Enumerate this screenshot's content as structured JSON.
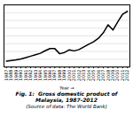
{
  "chart_data": {
    "type": "line",
    "title": "Fig. 1:  Gross domestic product of Malaysia, 1987-2012",
    "subtitle": "(Source of data: The World Bank)",
    "xlabel": "Year",
    "x": [
      1987,
      1988,
      1989,
      1990,
      1991,
      1992,
      1993,
      1994,
      1995,
      1996,
      1997,
      1998,
      1999,
      2000,
      2001,
      2002,
      2003,
      2004,
      2005,
      2006,
      2007,
      2008,
      2009,
      2010,
      2011,
      2012
    ],
    "values": [
      31.1,
      35.1,
      38.5,
      44.0,
      50.9,
      59.0,
      66.5,
      74.6,
      88.8,
      100.8,
      100.2,
      72.2,
      79.3,
      93.8,
      88.0,
      95.2,
      110.2,
      124.8,
      137.9,
      156.9,
      186.5,
      230.8,
      202.3,
      247.5,
      288.9,
      304.7
    ],
    "xlim": [
      1986.5,
      2012.5
    ],
    "xticks": [
      1987,
      1988,
      1989,
      1990,
      1991,
      1992,
      1993,
      1994,
      1995,
      1996,
      1997,
      1998,
      1999,
      2000,
      2001,
      2002,
      2003,
      2004,
      2005,
      2006,
      2007,
      2008,
      2009,
      2010,
      2011,
      2012
    ],
    "ylim": [
      0,
      340
    ],
    "yticks": [
      0,
      42.5,
      85,
      127.5,
      170,
      212.5,
      255,
      297.5,
      340
    ],
    "grid": true,
    "tick_labels": "x"
  }
}
